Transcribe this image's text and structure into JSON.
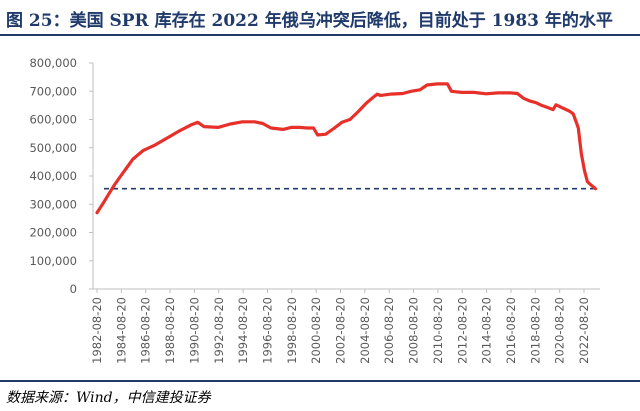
{
  "header": {
    "title": "图 25：美国 SPR 库存在 2022 年俄乌冲突后降低，目前处于 1983 年的水平"
  },
  "footer": {
    "source": "数据来源：Wind，中信建投证券"
  },
  "colors": {
    "title": "#1f3a6b",
    "series_line": "#e8302a",
    "reference_line": "#1f3a6b",
    "axis": "#bfbfbf",
    "tick_text": "#595959"
  },
  "chart_data": {
    "type": "line",
    "title": "",
    "xlabel": "",
    "ylabel": "",
    "ylim": [
      0,
      800000
    ],
    "yticks": [
      0,
      100000,
      200000,
      300000,
      400000,
      500000,
      600000,
      700000,
      800000
    ],
    "ytick_labels": [
      "0",
      "100,000",
      "200,000",
      "300,000",
      "400,000",
      "500,000",
      "600,000",
      "700,000",
      "800,000"
    ],
    "xtick_labels": [
      "1982-08-20",
      "1984-08-20",
      "1986-08-20",
      "1988-08-20",
      "1990-08-20",
      "1992-08-20",
      "1994-08-20",
      "1996-08-20",
      "1998-08-20",
      "2000-08-20",
      "2002-08-20",
      "2004-08-20",
      "2006-08-20",
      "2008-08-20",
      "2010-08-20",
      "2012-08-20",
      "2014-08-20",
      "2016-08-20",
      "2018-08-20",
      "2020-08-20",
      "2022-08-20"
    ],
    "grid": false,
    "legend": "none",
    "series": [
      {
        "name": "",
        "x": [
          "1982-08-20",
          "1983-02-01",
          "1983-08-01",
          "1984-02-01",
          "1984-08-01",
          "1985-02-01",
          "1985-08-01",
          "1986-06-01",
          "1987-06-01",
          "1988-06-01",
          "1989-06-01",
          "1990-06-01",
          "1990-12-01",
          "1991-06-01",
          "1992-08-01",
          "1993-08-01",
          "1994-08-01",
          "1995-08-01",
          "1996-04-01",
          "1996-12-01",
          "1997-12-01",
          "1998-08-01",
          "1999-04-01",
          "1999-12-01",
          "2000-06-01",
          "2000-10-01",
          "2001-06-01",
          "2002-02-01",
          "2002-10-01",
          "2003-06-01",
          "2004-02-01",
          "2004-10-01",
          "2005-06-01",
          "2005-09-01",
          "2005-12-01",
          "2006-10-01",
          "2007-10-01",
          "2008-06-01",
          "2009-03-01",
          "2009-10-01",
          "2010-08-01",
          "2011-06-01",
          "2011-10-01",
          "2012-08-01",
          "2013-08-01",
          "2014-08-01",
          "2015-08-01",
          "2016-08-01",
          "2017-03-01",
          "2017-09-01",
          "2018-03-01",
          "2018-09-01",
          "2019-03-01",
          "2019-09-01",
          "2020-02-01",
          "2020-05-01",
          "2020-12-01",
          "2021-06-01",
          "2021-10-01",
          "2022-01-01",
          "2022-03-01",
          "2022-06-01",
          "2022-09-01",
          "2022-12-01",
          "2023-03-01",
          "2023-08-01"
        ],
        "values": [
          270000,
          300000,
          335000,
          370000,
          400000,
          430000,
          460000,
          490000,
          510000,
          535000,
          560000,
          582000,
          590000,
          575000,
          572000,
          584000,
          592000,
          592000,
          586000,
          570000,
          565000,
          572000,
          572000,
          570000,
          570000,
          545000,
          548000,
          568000,
          590000,
          600000,
          628000,
          658000,
          682000,
          690000,
          685000,
          690000,
          692000,
          700000,
          705000,
          722000,
          726000,
          726000,
          700000,
          696000,
          696000,
          691000,
          694000,
          694000,
          692000,
          675000,
          666000,
          660000,
          650000,
          642000,
          635000,
          652000,
          640000,
          630000,
          620000,
          590000,
          570000,
          480000,
          420000,
          380000,
          370000,
          355000
        ]
      }
    ],
    "reference_lines": [
      {
        "y": 355000,
        "style": "dashed"
      }
    ]
  }
}
